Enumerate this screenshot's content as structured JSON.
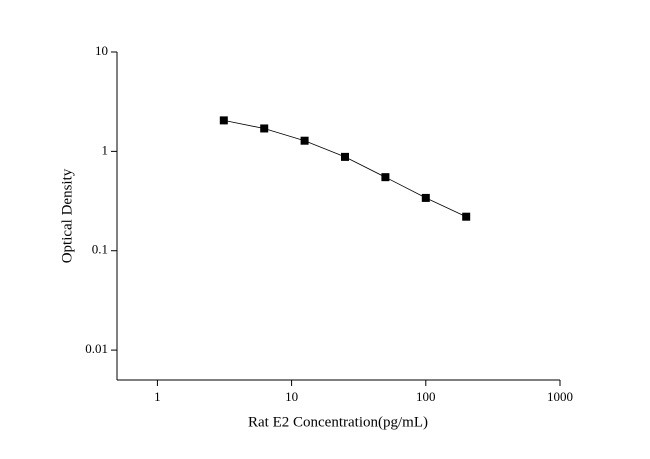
{
  "chart_data": {
    "type": "scatter-line",
    "xlabel": "Rat E2 Concentration(pg/mL)",
    "ylabel": "Optical Density",
    "x": [
      3.125,
      6.25,
      12.5,
      25,
      50,
      100,
      200
    ],
    "values": [
      2.05,
      1.7,
      1.28,
      0.88,
      0.55,
      0.34,
      0.22
    ],
    "color": "#000000",
    "xscale": "log",
    "yscale": "log",
    "xlim": [
      0.5,
      1000
    ],
    "ylim": [
      0.005,
      10
    ],
    "xticks": [
      1,
      10,
      100,
      1000
    ],
    "yticks": [
      0.01,
      0.1,
      1,
      10
    ]
  }
}
